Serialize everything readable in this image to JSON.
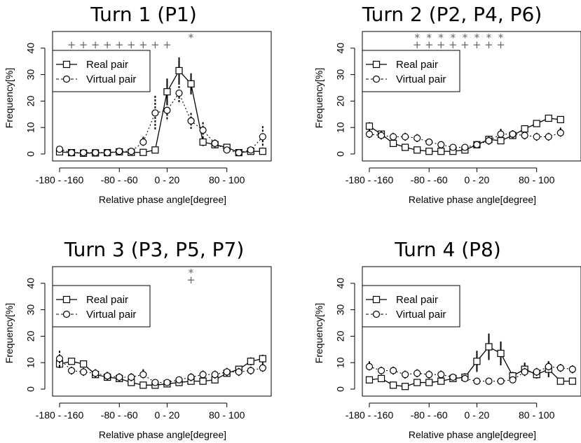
{
  "chart_data": [
    {
      "type": "line",
      "title": "Turn 1 (P1)",
      "xlabel": "Relative phase angle[degree]",
      "ylabel": "Frequency[%]",
      "ylim": [
        0,
        45
      ],
      "x_tick_labels": [
        "-180 - -160",
        "-80 - -60",
        "0 - 20",
        "80 - 100"
      ],
      "y_ticks": [
        "0",
        "10",
        "20",
        "30",
        "40"
      ],
      "legend": [
        "Real pair",
        "Virtual pair"
      ],
      "series": [
        {
          "name": "Real pair",
          "values": [
            0.8,
            0.5,
            0.3,
            0.4,
            0.5,
            0.8,
            0.6,
            0.6,
            1.5,
            23.5,
            31.5,
            26.5,
            4.5,
            3.5,
            2.5,
            0.5,
            1,
            1
          ],
          "errors": [
            0.5,
            0.5,
            0.5,
            0.5,
            0.5,
            0.6,
            0.6,
            0.6,
            0.8,
            5,
            5,
            4,
            1.5,
            1.2,
            1,
            0.5,
            0.6,
            0.6
          ]
        },
        {
          "name": "Virtual pair",
          "values": [
            1.8,
            0.5,
            0.5,
            0.5,
            0.5,
            1,
            1,
            4.5,
            15.5,
            16.5,
            23,
            12.5,
            9,
            4,
            1.5,
            0.5,
            1.5,
            6.5
          ],
          "errors": [
            1,
            0.5,
            0.5,
            0.5,
            0.5,
            0.5,
            0.8,
            2,
            6.5,
            4,
            4,
            3,
            3,
            1.5,
            1,
            0.5,
            1,
            4
          ]
        }
      ],
      "plus_bins": [
        1,
        2,
        3,
        4,
        5,
        6,
        7,
        8,
        9
      ],
      "star_bins": [
        11
      ]
    },
    {
      "type": "line",
      "title": "Turn 2 (P2, P4, P6)",
      "xlabel": "Relative phase angle[degree]",
      "ylabel": "Frequency[%]",
      "ylim": [
        0,
        45
      ],
      "x_tick_labels": [
        "-180 - -160",
        "-80 - -60",
        "0 - 20",
        "80 - 100"
      ],
      "y_ticks": [
        "0",
        "10",
        "20",
        "30",
        "40"
      ],
      "legend": [
        "Real pair",
        "Virtual pair"
      ],
      "series": [
        {
          "name": "Real pair",
          "values": [
            10.5,
            7.5,
            4,
            2.5,
            1.5,
            1,
            1,
            1,
            1.5,
            3.5,
            5.5,
            5,
            7,
            9.5,
            11.5,
            13.5,
            13
          ],
          "errors": [
            1.5,
            1.2,
            1,
            0.8,
            0.6,
            0.5,
            0.5,
            0.5,
            0.6,
            0.8,
            1,
            1,
            1.2,
            1.2,
            1.2,
            1.2,
            1.2
          ]
        },
        {
          "name": "Virtual pair",
          "values": [
            7.5,
            7,
            6.5,
            6.5,
            6,
            4.5,
            3.5,
            2.5,
            2.5,
            3.5,
            5,
            7.5,
            7.5,
            7,
            6.5,
            6.5,
            8
          ],
          "errors": [
            2,
            1.5,
            1.5,
            1.5,
            1.5,
            1.2,
            1,
            1,
            1,
            1,
            1.5,
            2,
            1.5,
            1.5,
            1.5,
            1.5,
            2
          ]
        }
      ],
      "plus_bins": [
        4,
        5,
        6,
        7,
        8,
        9,
        10,
        11
      ],
      "star_bins": [
        4,
        5,
        6,
        7,
        8,
        9,
        10,
        11
      ]
    },
    {
      "type": "line",
      "title": "Turn 3 (P3, P5, P7)",
      "xlabel": "Relative phase angle[degree]",
      "ylabel": "Frequency[%]",
      "ylim": [
        0,
        45
      ],
      "x_tick_labels": [
        "-180 - -160",
        "-80 - -60",
        "0 - 20",
        "80 - 100"
      ],
      "y_ticks": [
        "0",
        "10",
        "20",
        "30",
        "40"
      ],
      "legend": [
        "Real pair",
        "Virtual pair"
      ],
      "series": [
        {
          "name": "Real pair",
          "values": [
            9.5,
            10.5,
            9.5,
            5.5,
            4.5,
            4,
            2.5,
            1.5,
            1.5,
            2,
            2.5,
            3,
            3,
            3.5,
            6,
            7.5,
            10.5,
            11.5
          ],
          "errors": [
            1.5,
            1.2,
            1.2,
            1,
            1,
            0.8,
            0.8,
            0.6,
            0.6,
            0.6,
            0.8,
            1,
            1,
            1,
            1.2,
            1.2,
            1.5,
            1.5
          ]
        },
        {
          "name": "Virtual pair",
          "values": [
            11.5,
            7,
            6.5,
            6,
            5,
            4.5,
            4.5,
            5.5,
            2.5,
            2.5,
            3.5,
            4.5,
            5.5,
            5.5,
            6.5,
            6.5,
            7,
            8
          ],
          "errors": [
            3,
            1.5,
            1.5,
            1.5,
            1.5,
            1.5,
            1.5,
            2,
            1,
            1,
            1.2,
            1.5,
            1.5,
            1.5,
            1.5,
            1.5,
            1.5,
            2
          ]
        }
      ],
      "plus_bins": [
        11
      ],
      "star_bins": [
        11
      ]
    },
    {
      "type": "line",
      "title": "Turn 4 (P8)",
      "xlabel": "Relative phase angle[degree]",
      "ylabel": "Frequency[%]",
      "ylim": [
        0,
        45
      ],
      "x_tick_labels": [
        "-180 - -160",
        "-80 - -60",
        "0 - 20",
        "80 - 100"
      ],
      "y_ticks": [
        "0",
        "10",
        "20",
        "30",
        "40"
      ],
      "legend": [
        "Real pair",
        "Virtual pair"
      ],
      "series": [
        {
          "name": "Real pair",
          "values": [
            3.5,
            4,
            1.5,
            1,
            2.5,
            2.5,
            3,
            4,
            4.5,
            10.5,
            16,
            13.5,
            5,
            7.5,
            5.5,
            7.5,
            3,
            3
          ],
          "errors": [
            1.2,
            1.2,
            0.6,
            0.6,
            1,
            1,
            1,
            1.2,
            1.5,
            4,
            5,
            4.5,
            1.5,
            2.5,
            1.5,
            3,
            1,
            1
          ]
        },
        {
          "name": "Virtual pair",
          "values": [
            8.5,
            7,
            7,
            5.5,
            6,
            5.5,
            5.5,
            4.5,
            4,
            3,
            3,
            3,
            3.5,
            6.5,
            6.5,
            8.5,
            8,
            7.5
          ],
          "errors": [
            2,
            1.5,
            1.5,
            1.5,
            1.5,
            1.5,
            1.5,
            1.2,
            1,
            0.8,
            0.8,
            0.8,
            1,
            1.5,
            1.5,
            2,
            1.5,
            1.5
          ]
        }
      ],
      "plus_bins": [],
      "star_bins": []
    }
  ]
}
